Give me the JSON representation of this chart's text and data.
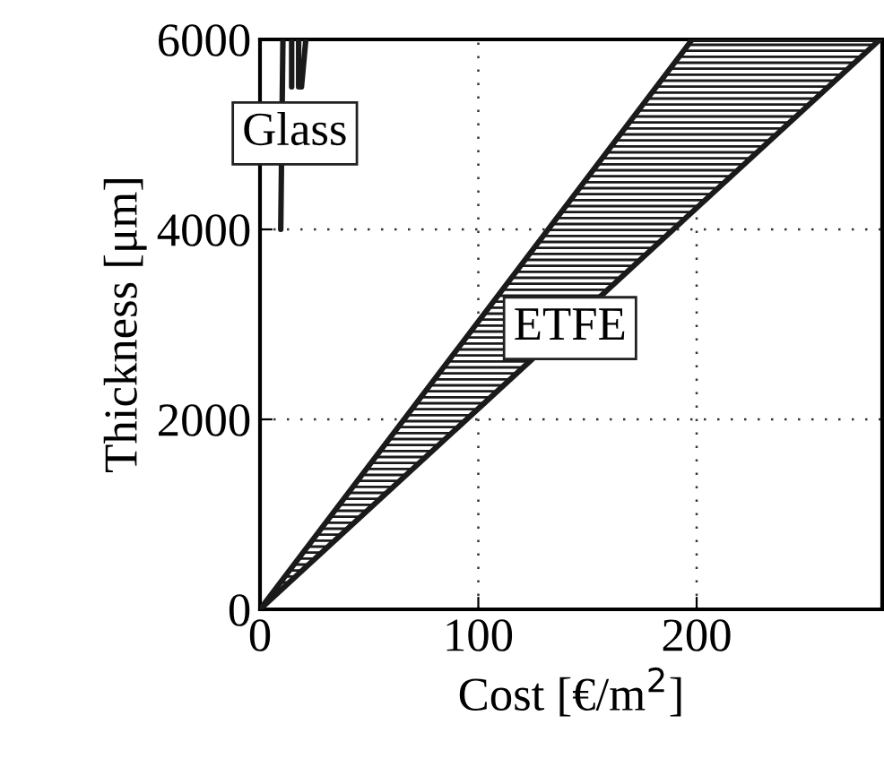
{
  "chart_data": {
    "type": "line",
    "xlabel": "Cost [€/m$^{2}$]",
    "ylabel": "Thickness [μm]",
    "xlim": [
      0,
      285
    ],
    "ylim": [
      0,
      6000
    ],
    "xticks": [
      0,
      100,
      200
    ],
    "yticks": [
      0,
      2000,
      4000,
      6000
    ],
    "grid": true,
    "marker": "none",
    "line_style": "solid",
    "series": [
      {
        "color": "#1a1a1a",
        "x": [
          0,
          198,
          284
        ],
        "values": [
          0,
          6000,
          6000
        ],
        "lower": [
          0,
          4183,
          6000
        ],
        "upper": [
          0,
          6000,
          6000
        ]
      },
      {
        "color": "#1a1a1a",
        "x": [
          0,
          284
        ],
        "values": [
          0,
          6000
        ]
      },
      {
        "color": "#1a1a1a",
        "x": [
          9.5,
          10.5
        ],
        "values": [
          4000,
          6000
        ]
      },
      {
        "color": "#1a1a1a",
        "x": [
          19,
          21
        ],
        "values": [
          5500,
          6000
        ]
      },
      {
        "color": "#1a1a1a",
        "x": [
          14.5,
          14.5
        ],
        "values": [
          5500,
          6000
        ]
      },
      {
        "color": "#1a1a1a",
        "x": [
          17.7,
          17.7
        ],
        "values": [
          5500,
          6000
        ]
      }
    ],
    "annotations": [
      "Glass",
      {
        "text": "ETFE",
        "x": 142,
        "y": 2960
      }
    ]
  }
}
